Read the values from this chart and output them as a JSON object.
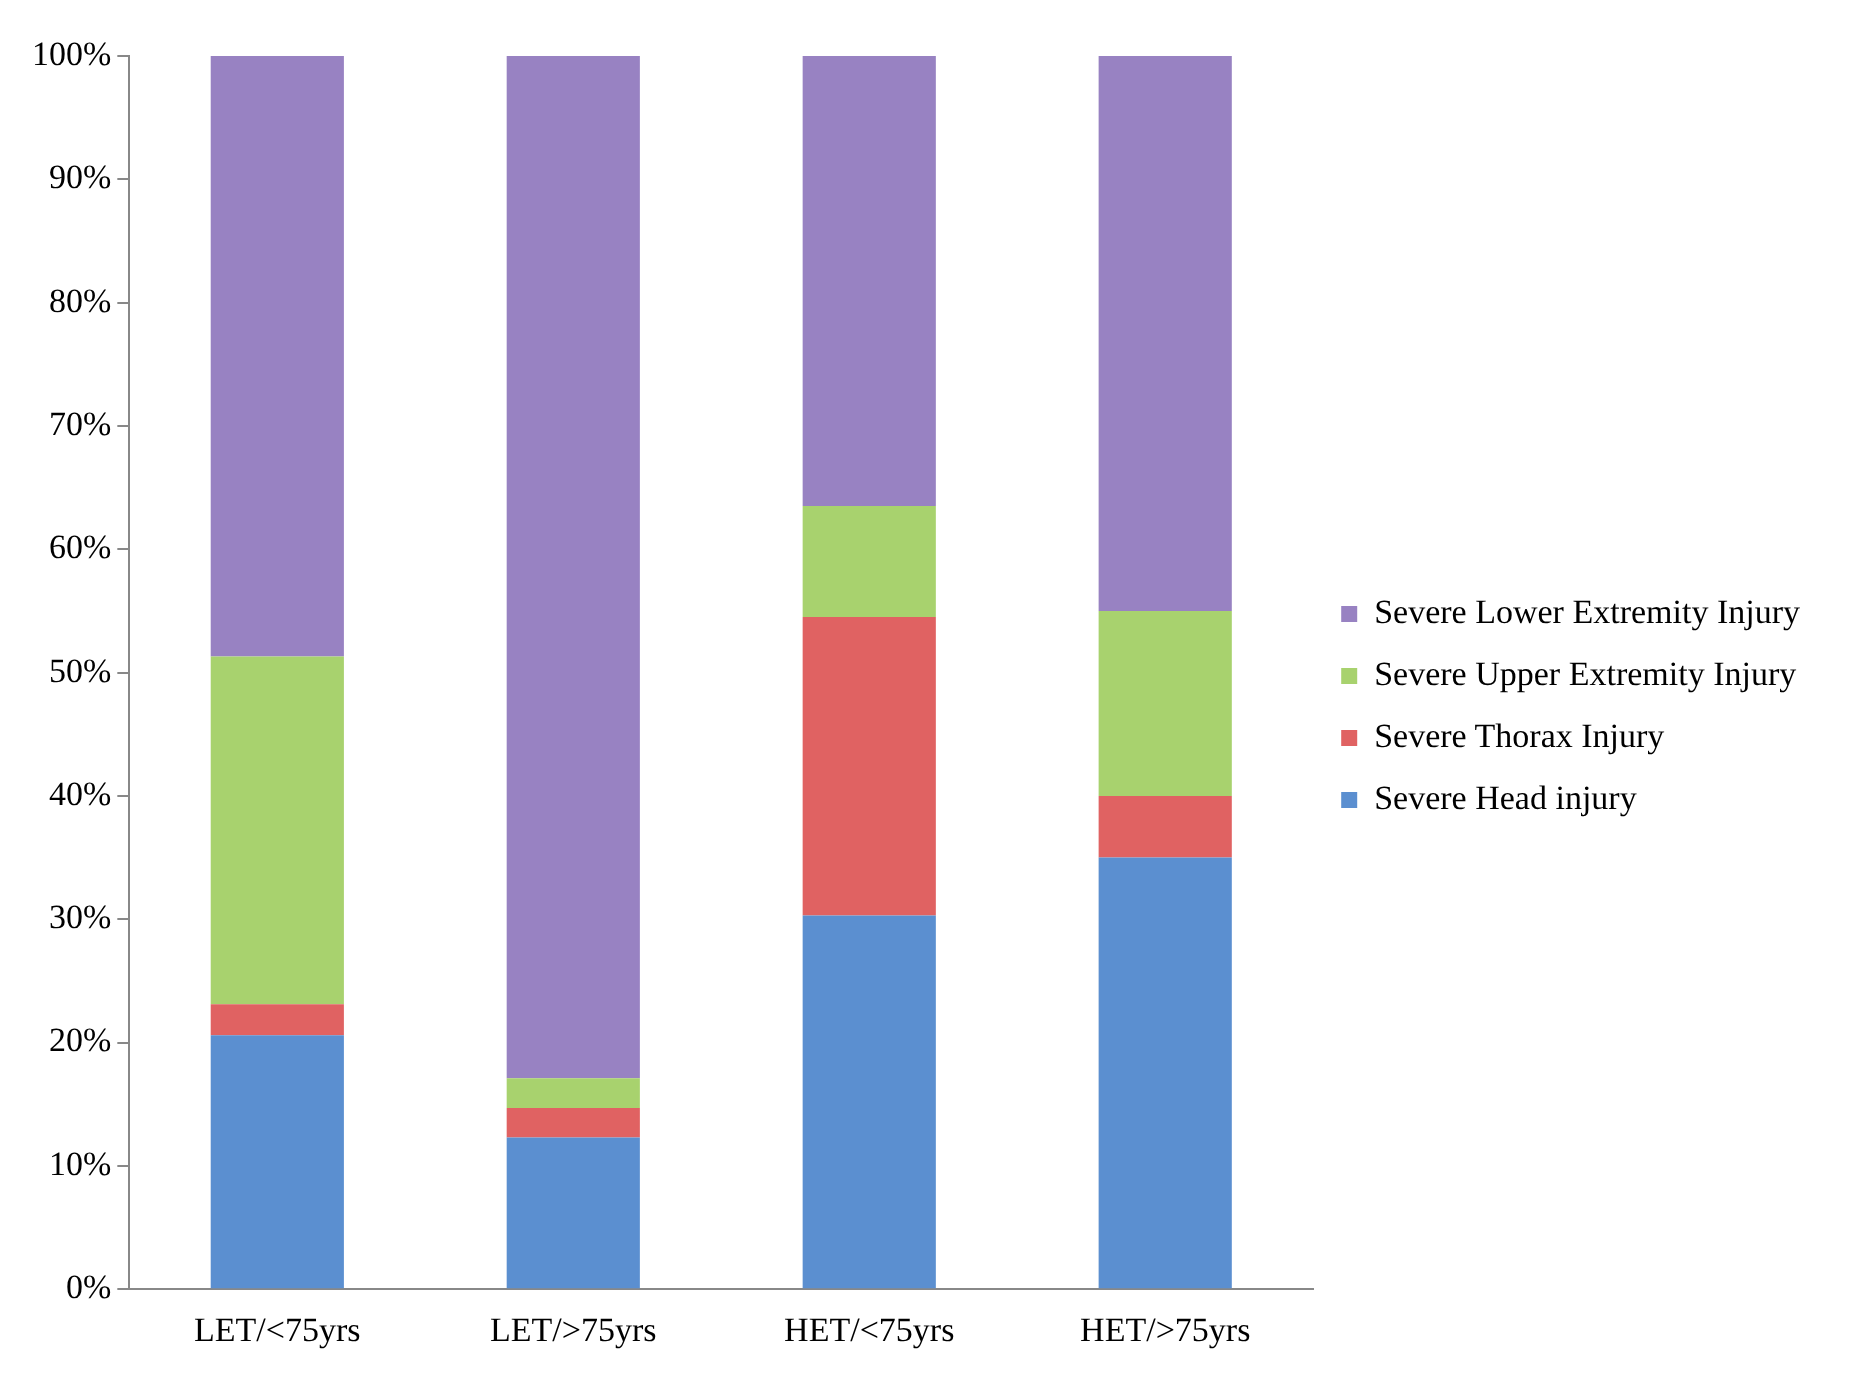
{
  "chart_data": {
    "type": "bar",
    "stacked": true,
    "categories": [
      "LET/<75yrs",
      "LET/>75yrs",
      "HET/<75yrs",
      "HET/>75yrs"
    ],
    "series": [
      {
        "name": "Severe Head injury",
        "color": "#5b8fd0",
        "values": [
          20.6,
          12.3,
          30.3,
          35.0
        ]
      },
      {
        "name": "Severe Thorax Injury",
        "color": "#e06262",
        "values": [
          2.5,
          2.4,
          24.2,
          5.0
        ]
      },
      {
        "name": "Severe Upper Extremity Injury",
        "color": "#a8d26e",
        "values": [
          28.2,
          2.4,
          9.0,
          15.0
        ]
      },
      {
        "name": "Severe Lower Extremity Injury",
        "color": "#9882c2",
        "values": [
          48.7,
          82.9,
          36.5,
          45.0
        ]
      }
    ],
    "ylim": [
      0,
      100
    ],
    "yticks": [
      {
        "value": 0,
        "label": "0%"
      },
      {
        "value": 10,
        "label": "10%"
      },
      {
        "value": 20,
        "label": "20%"
      },
      {
        "value": 30,
        "label": "30%"
      },
      {
        "value": 40,
        "label": "40%"
      },
      {
        "value": 50,
        "label": "50%"
      },
      {
        "value": 60,
        "label": "60%"
      },
      {
        "value": 70,
        "label": "70%"
      },
      {
        "value": 80,
        "label": "80%"
      },
      {
        "value": 90,
        "label": "90%"
      },
      {
        "value": 100,
        "label": "100%"
      }
    ],
    "grid": false,
    "legend": "right"
  }
}
